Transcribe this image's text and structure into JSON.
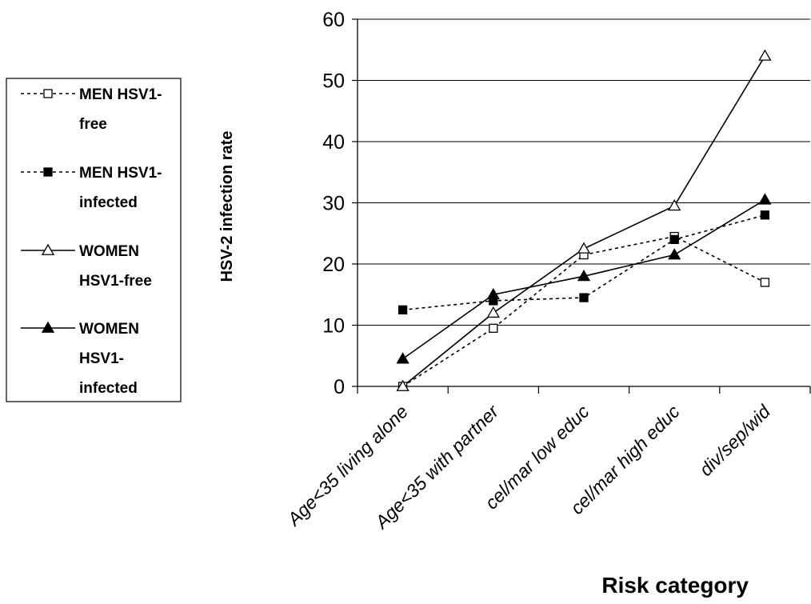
{
  "chart_data": {
    "type": "line",
    "categories": [
      "Age<35 living alone",
      "Age<35 with partner",
      "cel/mar low educ",
      "cel/mar high educ",
      "div/sep/wid"
    ],
    "xlabel": "Risk category",
    "ylabel": "HSV-2 infection rate",
    "ylim": [
      0,
      60
    ],
    "yticks": [
      "0",
      "10",
      "20",
      "30",
      "40",
      "50",
      "60"
    ],
    "grid": "horizontal",
    "legend_position": "left",
    "series": [
      {
        "name": "MEN HSV1-free",
        "legend_lines": [
          "MEN HSV1-",
          "free"
        ],
        "values": [
          0,
          9.5,
          21.5,
          24.5,
          17
        ],
        "line_style": "dashed",
        "marker": "open-square",
        "color": "#000000"
      },
      {
        "name": "MEN HSV1-infected",
        "legend_lines": [
          "MEN HSV1-",
          "infected"
        ],
        "values": [
          12.5,
          14,
          14.5,
          24,
          28
        ],
        "line_style": "dashed",
        "marker": "filled-square",
        "color": "#000000"
      },
      {
        "name": "WOMEN HSV1-free",
        "legend_lines": [
          "WOMEN",
          "HSV1-free"
        ],
        "values": [
          0,
          12,
          22.5,
          29.5,
          54
        ],
        "line_style": "solid",
        "marker": "open-triangle",
        "color": "#000000"
      },
      {
        "name": "WOMEN HSV1-infected",
        "legend_lines": [
          "WOMEN",
          "HSV1-",
          "infected"
        ],
        "values": [
          4.5,
          15,
          18,
          21.5,
          30.5
        ],
        "line_style": "solid",
        "marker": "filled-triangle",
        "color": "#000000"
      }
    ]
  }
}
